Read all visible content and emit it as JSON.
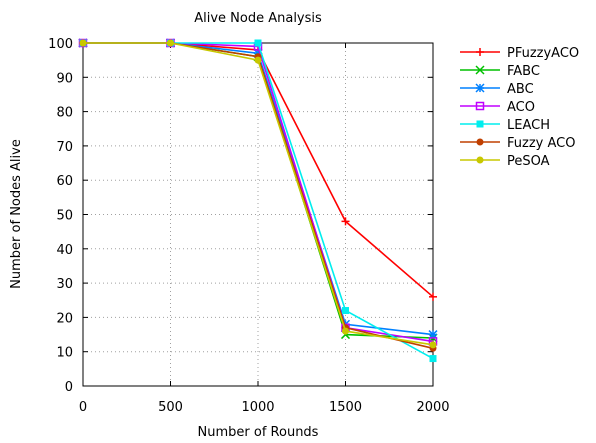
{
  "chart_data": {
    "type": "line",
    "title": "Alive Node Analysis",
    "xlabel": "Number of Rounds",
    "ylabel": "Number of Nodes Alive",
    "x": [
      0,
      500,
      1000,
      1500,
      2000
    ],
    "xlim": [
      0,
      2000
    ],
    "ylim": [
      0,
      100
    ],
    "xticks": [
      0,
      500,
      1000,
      1500,
      2000
    ],
    "yticks": [
      0,
      10,
      20,
      30,
      40,
      50,
      60,
      70,
      80,
      90,
      100
    ],
    "grid": true,
    "legend_position": "right",
    "series": [
      {
        "name": "PFuzzyACO",
        "color": "#ff0000",
        "marker": "plus",
        "values": [
          100,
          100,
          98,
          48,
          26
        ]
      },
      {
        "name": "FABC",
        "color": "#00c000",
        "marker": "x",
        "values": [
          100,
          100,
          96,
          15,
          14
        ]
      },
      {
        "name": "ABC",
        "color": "#0080ff",
        "marker": "star",
        "values": [
          100,
          100,
          97,
          18,
          15
        ]
      },
      {
        "name": "ACO",
        "color": "#c000ff",
        "marker": "square",
        "values": [
          100,
          100,
          99,
          17,
          13
        ]
      },
      {
        "name": "LEACH",
        "color": "#00eeee",
        "marker": "filled-square",
        "values": [
          100,
          100,
          100,
          22,
          8
        ]
      },
      {
        "name": "Fuzzy ACO",
        "color": "#c04000",
        "marker": "filled-circle",
        "values": [
          100,
          100,
          96,
          17,
          11
        ]
      },
      {
        "name": "PeSOA",
        "color": "#c8c800",
        "marker": "filled-circle",
        "values": [
          100,
          100,
          95,
          16,
          12
        ]
      }
    ]
  }
}
